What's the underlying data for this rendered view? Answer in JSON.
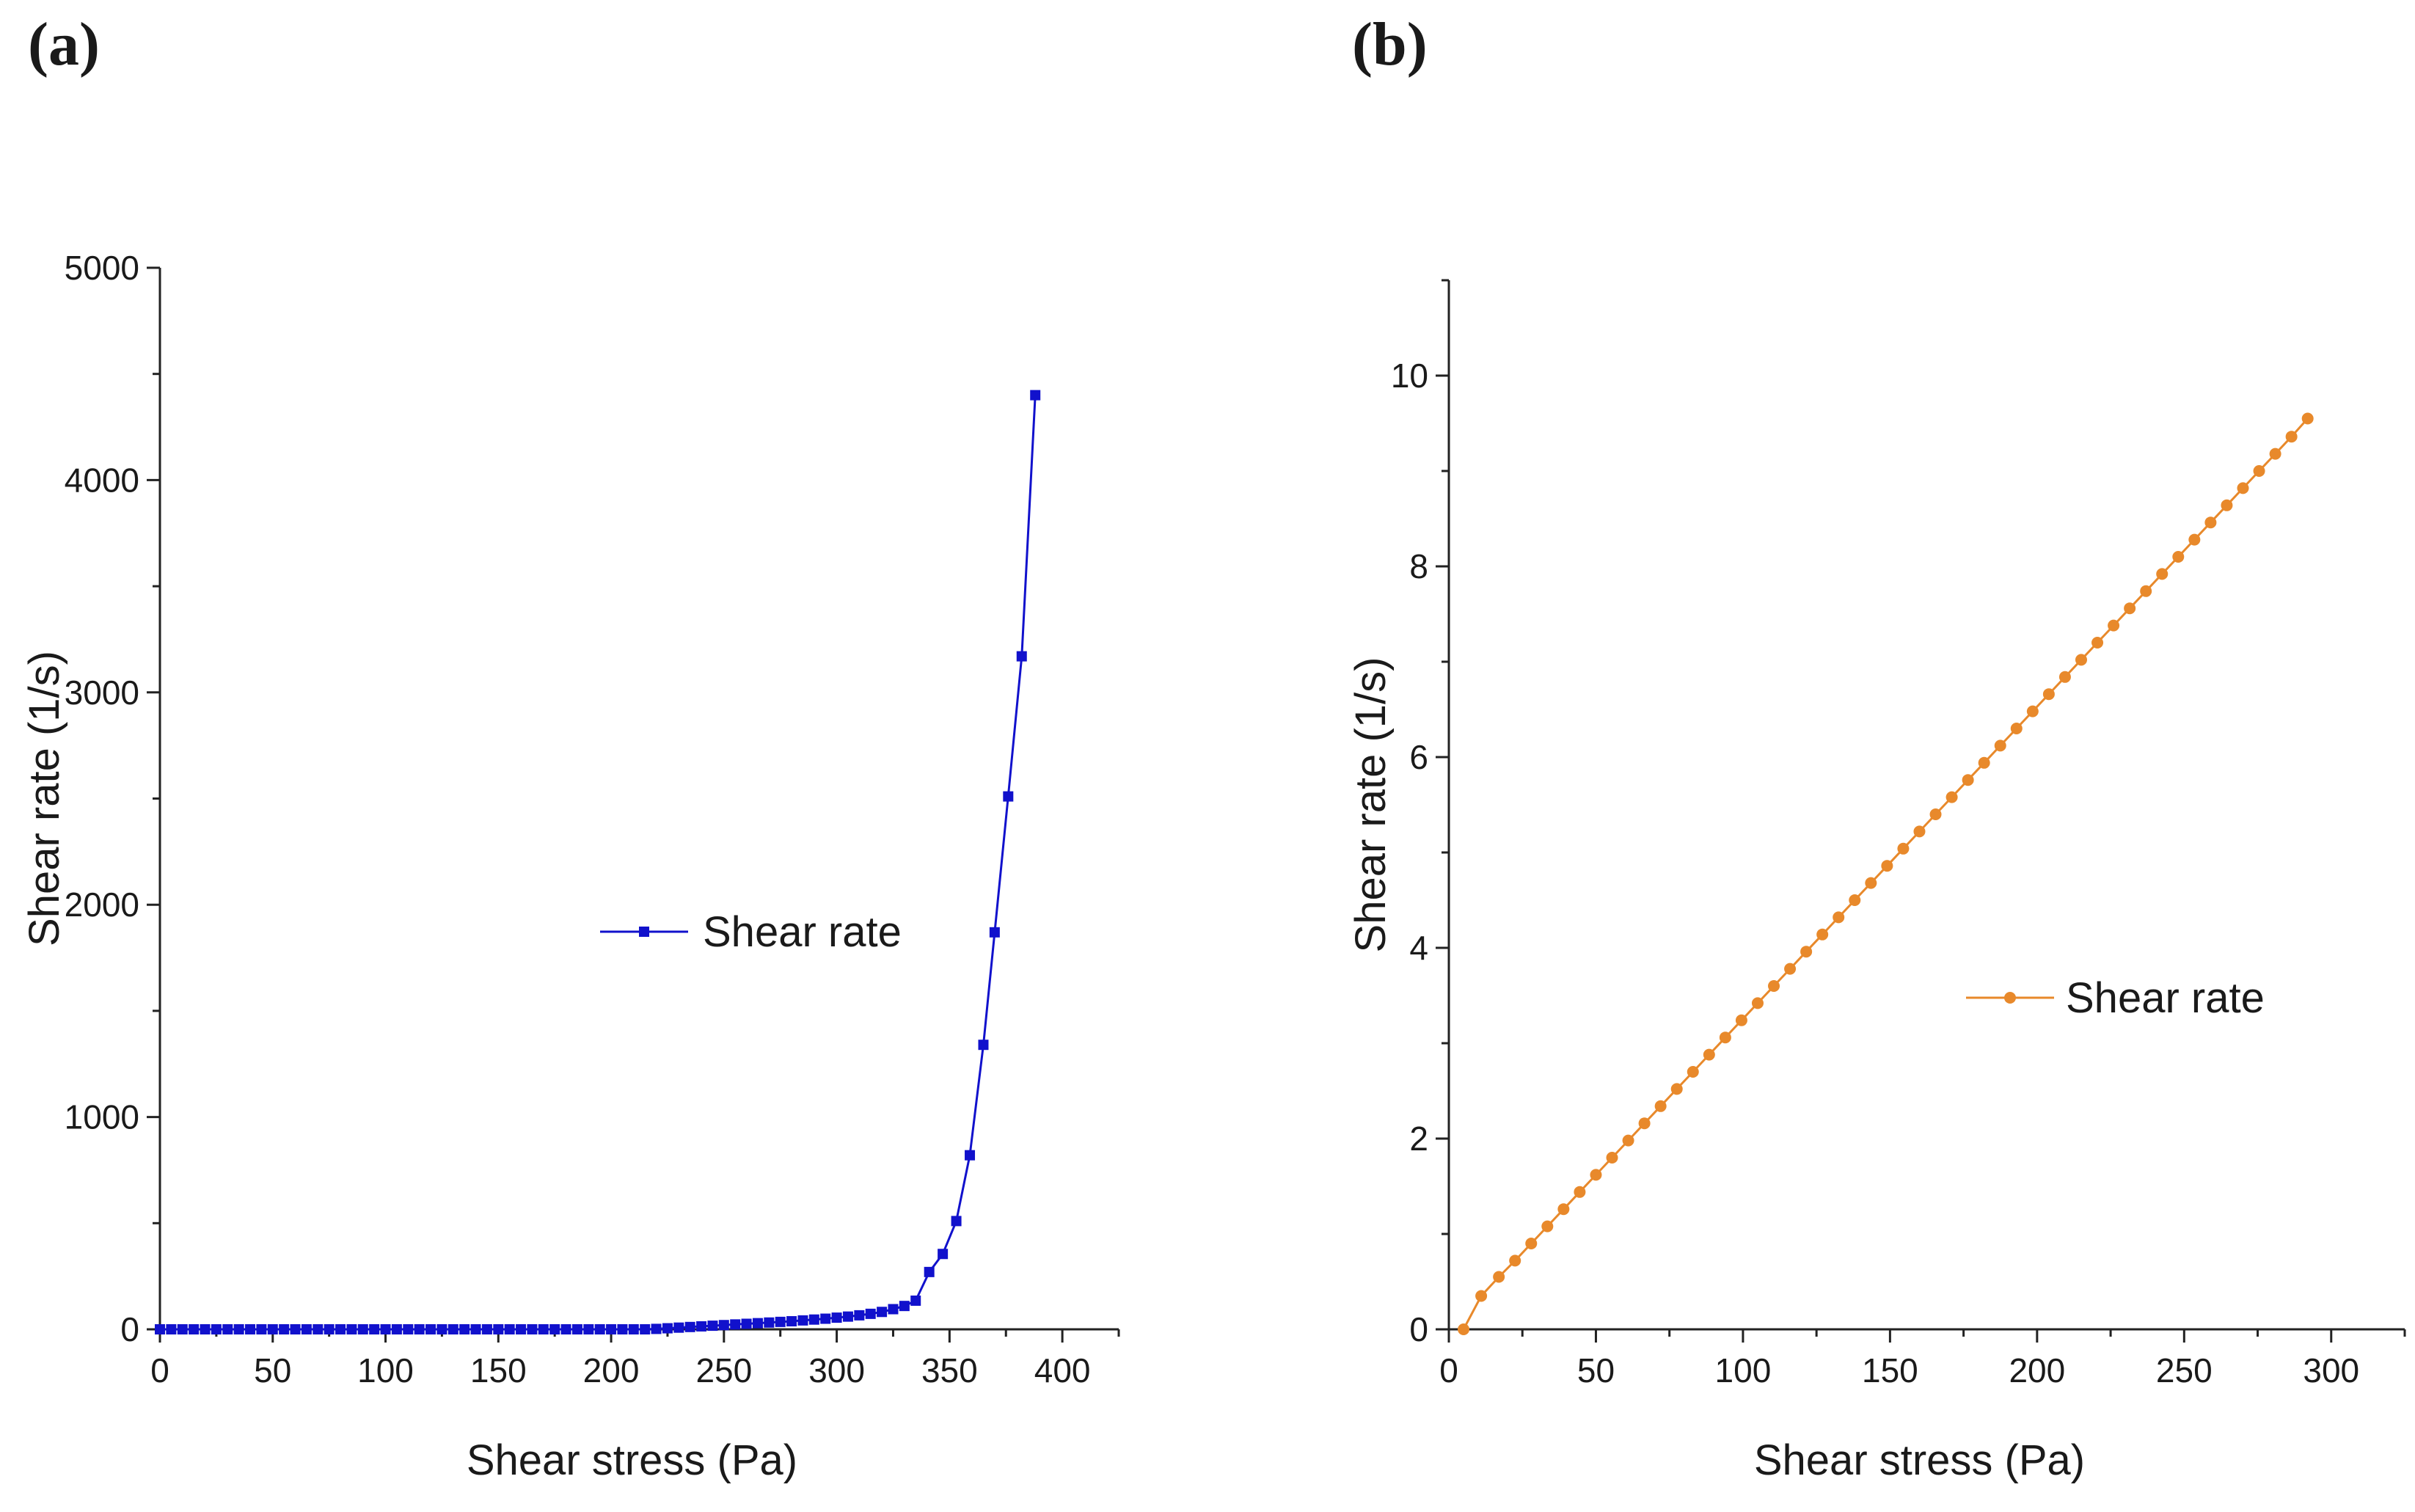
{
  "chart_data": [
    {
      "panel": "(a)",
      "type": "line",
      "xlabel": "Shear stress (Pa)",
      "ylabel": "Shear rate (1/s)",
      "xlim": [
        0,
        425
      ],
      "ylim": [
        0,
        5000
      ],
      "xticks": [
        0,
        50,
        100,
        150,
        200,
        250,
        300,
        350,
        400
      ],
      "yticks": [
        0,
        1000,
        2000,
        3000,
        4000,
        5000
      ],
      "legend": "Shear rate",
      "legend_position": "center",
      "marker": "square",
      "color": "#1111cc",
      "series": [
        {
          "name": "Shear rate",
          "x": [
            0,
            5,
            10,
            15,
            20,
            25,
            30,
            35,
            40,
            45,
            50,
            55,
            60,
            65,
            70,
            75,
            80,
            85,
            90,
            95,
            100,
            105,
            110,
            115,
            120,
            125,
            130,
            135,
            140,
            145,
            150,
            155,
            160,
            165,
            170,
            175,
            180,
            185,
            190,
            195,
            200,
            205,
            210,
            215,
            220,
            225,
            230,
            235,
            240,
            245,
            250,
            255,
            260,
            265,
            270,
            275,
            280,
            285,
            290,
            295,
            300,
            305,
            310,
            315,
            320,
            325,
            330,
            335,
            341,
            347,
            353,
            359,
            365,
            370,
            376,
            382,
            388
          ],
          "y": [
            0,
            0,
            0,
            0,
            0,
            0,
            0,
            0,
            0,
            0,
            0,
            0,
            0,
            0,
            0,
            0,
            0,
            0,
            0,
            0,
            0,
            0,
            0,
            0,
            0,
            0,
            0,
            0,
            0,
            0,
            0,
            0,
            0,
            0,
            0,
            0,
            0,
            0,
            0,
            0,
            0,
            0,
            0,
            0,
            2,
            5,
            8,
            11,
            14,
            17,
            20,
            23,
            26,
            29,
            32,
            35,
            38,
            42,
            46,
            50,
            55,
            60,
            66,
            73,
            82,
            95,
            110,
            135,
            270,
            355,
            510,
            820,
            1340,
            1870,
            2510,
            3170,
            4400
          ]
        }
      ]
    },
    {
      "panel": "(b)",
      "type": "line",
      "xlabel": "Shear stress (Pa)",
      "ylabel": "Shear rate (1/s)",
      "xlim": [
        0,
        325
      ],
      "ylim": [
        0,
        11
      ],
      "xticks": [
        0,
        50,
        100,
        150,
        200,
        250,
        300
      ],
      "yticks": [
        0,
        2,
        4,
        6,
        8,
        10
      ],
      "legend": "Shear rate",
      "legend_position": "center-right",
      "marker": "circle",
      "color": "#e8892b",
      "series": [
        {
          "name": "Shear rate",
          "x": [
            5,
            11,
            17,
            22.5,
            28,
            33.5,
            39,
            44.5,
            50,
            55.5,
            61,
            66.5,
            72,
            77.5,
            83,
            88.5,
            94,
            99.5,
            105,
            110.5,
            116,
            121.5,
            127,
            132.5,
            138,
            143.5,
            149,
            154.5,
            160,
            165.5,
            171,
            176.5,
            182,
            187.5,
            193,
            198.5,
            204,
            209.5,
            215,
            220.5,
            226,
            231.5,
            237,
            242.5,
            248,
            253.5,
            259,
            264.5,
            270,
            275.5,
            281,
            286.5,
            292
          ],
          "y": [
            0,
            0.35,
            0.55,
            0.72,
            0.9,
            1.08,
            1.26,
            1.44,
            1.62,
            1.8,
            1.98,
            2.16,
            2.34,
            2.52,
            2.7,
            2.88,
            3.06,
            3.24,
            3.42,
            3.6,
            3.78,
            3.96,
            4.14,
            4.32,
            4.5,
            4.68,
            4.86,
            5.04,
            5.22,
            5.4,
            5.58,
            5.76,
            5.94,
            6.12,
            6.3,
            6.48,
            6.66,
            6.84,
            7.02,
            7.2,
            7.38,
            7.56,
            7.74,
            7.92,
            8.1,
            8.28,
            8.46,
            8.64,
            8.82,
            9.0,
            9.18,
            9.36,
            9.55
          ]
        }
      ]
    }
  ]
}
